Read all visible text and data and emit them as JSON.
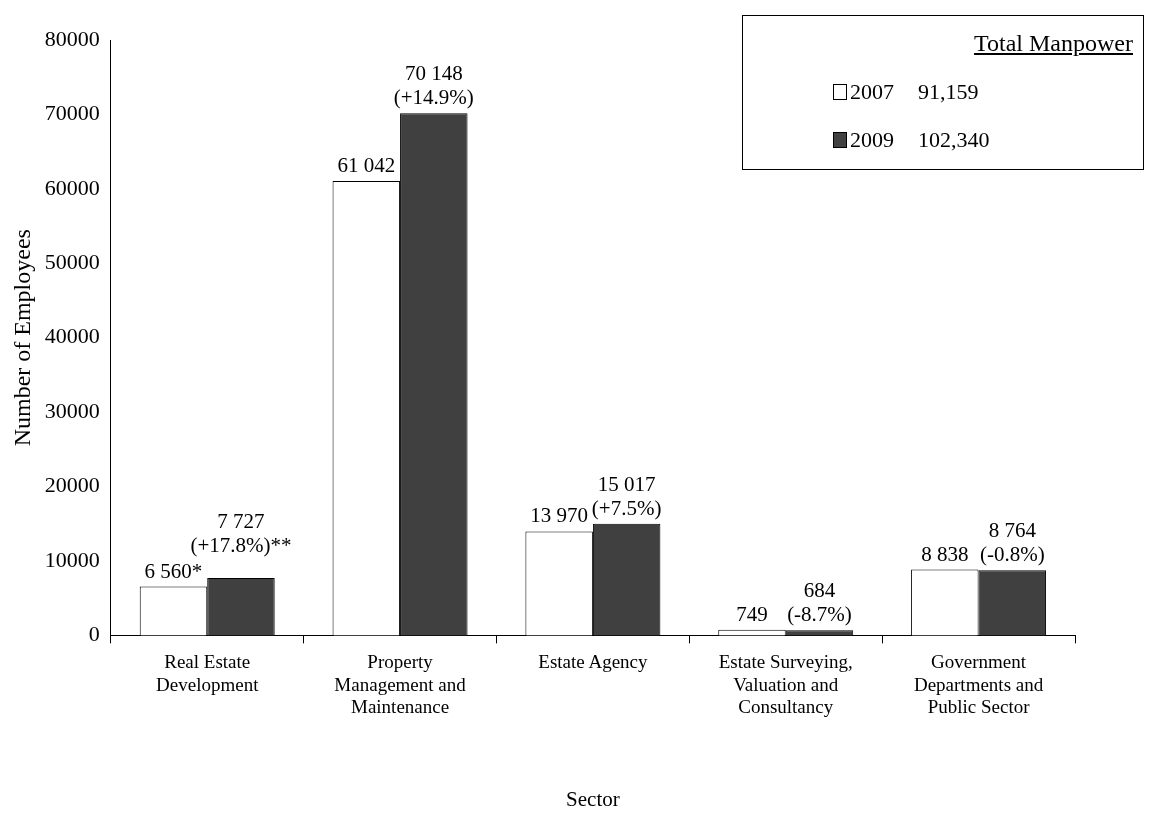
{
  "chart_data": {
    "type": "bar",
    "xlabel": "Sector",
    "ylabel": "Number of Employees",
    "legend_title": "Total Manpower",
    "legend": "top right",
    "grid": false,
    "categories": [
      "Real Estate Development",
      "Property Management and Maintenance",
      "Estate Agency",
      "Estate Surveying, Valuation and Consultancy",
      "Government Departments and Public Sector"
    ],
    "series": [
      {
        "name": "2007",
        "color": "#ffffff",
        "values": [
          6560,
          61042,
          13970,
          749,
          8838
        ],
        "value_labels": [
          "6 560*",
          "61 042",
          "13 970",
          "749",
          "8 838"
        ]
      },
      {
        "name": "2009",
        "color": "#404040",
        "values": [
          7727,
          70148,
          15017,
          684,
          8764
        ],
        "value_labels": [
          "7 727\n(+17.8%)**",
          "70 148\n(+14.9%)",
          "15 017\n(+7.5%)",
          "684\n(-8.7%)",
          "8 764\n(-0.8%)"
        ]
      }
    ],
    "annotations": [
      "91,159",
      "102,340"
    ],
    "ylim": [
      0,
      80000
    ],
    "yticks": [
      0,
      10000,
      20000,
      30000,
      40000,
      50000,
      60000,
      70000,
      80000
    ]
  }
}
